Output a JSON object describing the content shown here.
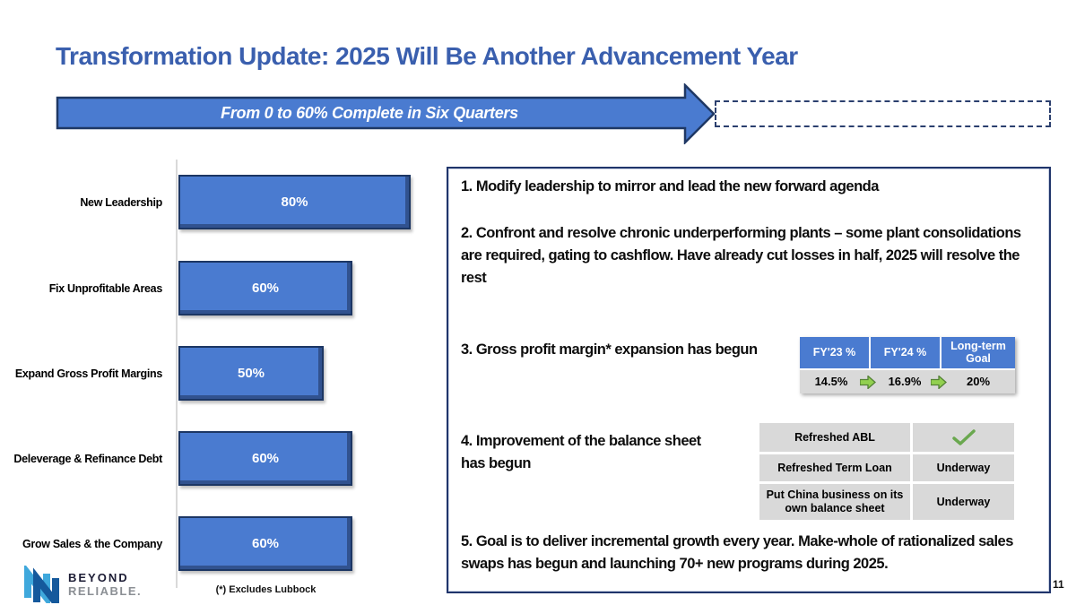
{
  "slide": {
    "title": "Transformation Update: 2025 Will Be Another Advancement Year",
    "banner_label": "From 0 to 60% Complete in Six Quarters",
    "footnote": "(*) Excludes Lubbock",
    "page_number": "11",
    "logo": {
      "line1": "BEYOND",
      "line2": "RELIABLE."
    }
  },
  "chart_data": {
    "type": "bar",
    "orientation": "horizontal",
    "title": "",
    "categories": [
      "New Leadership",
      "Fix Unprofitable Areas",
      "Expand Gross Profit Margins",
      "Deleverage & Refinance Debt",
      "Grow Sales & the Company"
    ],
    "values": [
      80,
      60,
      50,
      60,
      60
    ],
    "value_labels": [
      "80%",
      "60%",
      "50%",
      "60%",
      "60%"
    ],
    "xlim": [
      0,
      100
    ],
    "grid": false,
    "bar_color": "#4a7bd0",
    "data_label_color": "#ffffff",
    "footnote": "(*) Excludes Lubbock"
  },
  "panel": {
    "items": [
      "1. Modify leadership to mirror and lead the new forward agenda",
      "2. Confront and resolve chronic underperforming plants – some plant consolidations are required, gating to cashflow. Have already cut losses in half, 2025 will resolve the rest",
      "3. Gross profit margin* expansion has begun",
      "4. Improvement of the balance sheet has begun",
      "5. Goal is to deliver incremental growth every year. Make-whole of rationalized sales swaps has begun and launching 70+ new programs during 2025."
    ],
    "margin_table": {
      "headers": [
        "FY'23 %",
        "FY'24 %",
        "Long-term Goal"
      ],
      "values": [
        "14.5%",
        "16.9%",
        "20%"
      ],
      "arrow_icon": "green-right-arrow"
    },
    "balance_table": {
      "rows": [
        {
          "label": "Refreshed ABL",
          "status_icon": "green-check",
          "status": ""
        },
        {
          "label": "Refreshed Term Loan",
          "status": "Underway"
        },
        {
          "label": "Put China business on its own balance sheet",
          "status": "Underway"
        }
      ]
    }
  },
  "colors": {
    "title_blue": "#3a5fae",
    "fill_blue": "#4a7bd0",
    "border_navy": "#1f3864",
    "cell_gray": "#d9d9d9",
    "arrow_green": "#92d050",
    "check_green": "#6aa84f"
  }
}
